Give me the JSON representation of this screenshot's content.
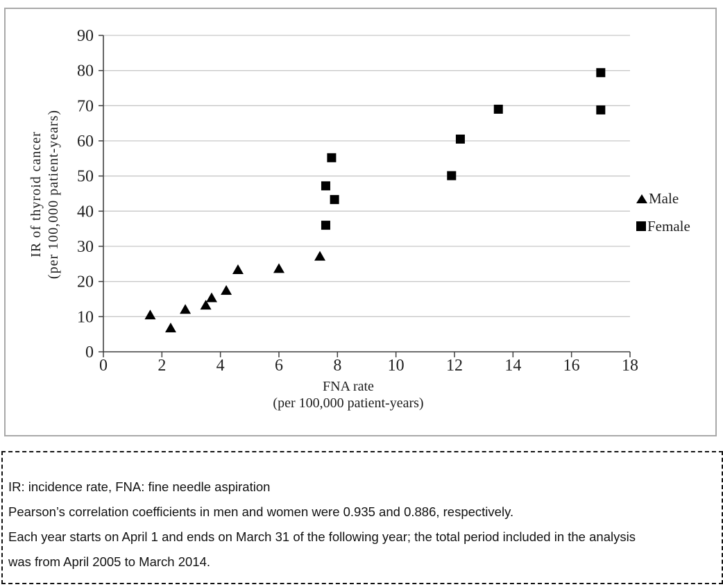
{
  "axis_titles": {
    "y_line1": "IR of thyroid cancer",
    "y_line2": "(per 100,000 patient-years)",
    "x_line1": "FNA rate",
    "x_line2": "(per 100,000 patient-years)"
  },
  "chart_data": {
    "type": "scatter",
    "title": "",
    "xlabel": "FNA rate (per 100,000 patient-years)",
    "ylabel": "IR of thyroid cancer (per 100,000 patient-years)",
    "xlim": [
      0,
      18
    ],
    "ylim": [
      0,
      90
    ],
    "xticks": [
      0,
      2,
      4,
      6,
      8,
      10,
      12,
      14,
      16,
      18
    ],
    "yticks": [
      0,
      10,
      20,
      30,
      40,
      50,
      60,
      70,
      80,
      90
    ],
    "grid": "horizontal",
    "legend_position": "right-outside",
    "series": [
      {
        "name": "Male",
        "marker": "triangle",
        "color": "#000000",
        "points": [
          [
            1.6,
            10.5
          ],
          [
            2.3,
            6.8
          ],
          [
            2.8,
            12.1
          ],
          [
            3.5,
            13.3
          ],
          [
            3.7,
            15.4
          ],
          [
            4.2,
            17.5
          ],
          [
            4.6,
            23.4
          ],
          [
            6.0,
            23.7
          ],
          [
            7.4,
            27.2
          ]
        ]
      },
      {
        "name": "Female",
        "marker": "square",
        "color": "#000000",
        "points": [
          [
            7.6,
            36.0
          ],
          [
            7.6,
            47.2
          ],
          [
            7.9,
            43.3
          ],
          [
            7.8,
            55.2
          ],
          [
            11.9,
            50.1
          ],
          [
            12.2,
            60.5
          ],
          [
            13.5,
            69.0
          ],
          [
            17.0,
            68.8
          ],
          [
            17.0,
            79.4
          ]
        ]
      }
    ]
  },
  "caption": {
    "notes": [
      "IR: incidence rate, FNA: fine needle aspiration",
      "Pearson’s correlation coefficients in men and women were 0.935 and 0.886, respectively.",
      "Each year starts on April 1 and ends on March 31 of the following year; the total period included in the analysis\nwas from April 2005 to March 2014."
    ]
  },
  "colors": {
    "marker": "#000000",
    "gridline": "#c8c8c8",
    "axis": "#3f3f3f",
    "figure_border": "#a8a8a8",
    "caption_border": "#111111",
    "text": "#1f1f1f"
  }
}
